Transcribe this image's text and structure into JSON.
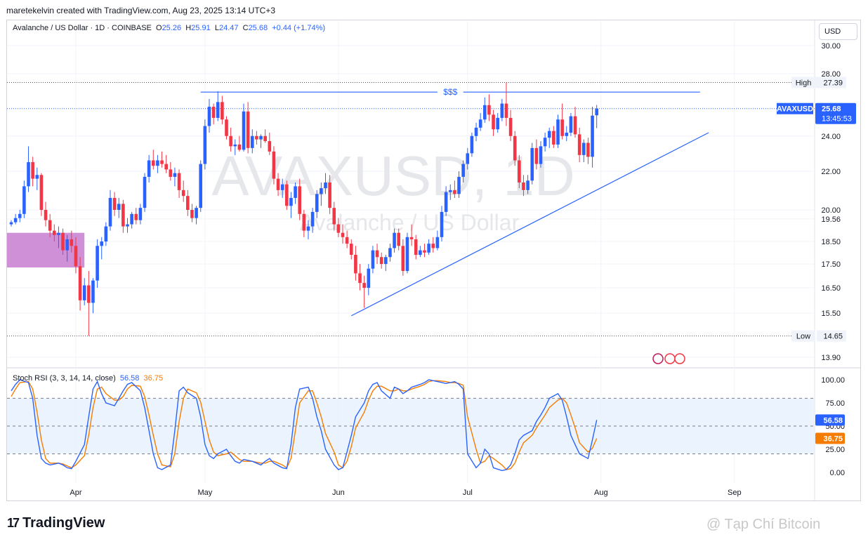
{
  "header": {
    "created_by": "maretekelvin created with TradingView.com, Aug 23, 2025 13:14 UTC+3"
  },
  "legend": {
    "title": "Avalanche / US Dollar · 1D · COINBASE",
    "open_label": "O",
    "open": "25.26",
    "high_label": "H",
    "high": "25.91",
    "low_label": "L",
    "low": "24.47",
    "close_label": "C",
    "close": "25.68",
    "change": "+0.44 (+1.74%)"
  },
  "currency_button": "USD",
  "watermark": {
    "symbol": "AVAXUSD, 1D",
    "name": "Avalanche / US Dollar"
  },
  "annotations": {
    "resistance_label": "$$$",
    "high_label": "High",
    "high_value": "27.39",
    "low_label": "Low",
    "low_value": "14.65",
    "ticker_label": "AVAXUSD",
    "last_price": "25.68",
    "countdown": "13:45:53"
  },
  "price_axis_labels": [
    "30.00",
    "28.00",
    "24.00",
    "22.00",
    "20.00",
    "19.56",
    "18.50",
    "17.50",
    "16.50",
    "15.50",
    "13.90"
  ],
  "price_axis_values": [
    30,
    28,
    24,
    22,
    20,
    19.56,
    18.5,
    17.5,
    16.5,
    15.5,
    13.9
  ],
  "stoch_rsi": {
    "title": "Stoch RSI (3, 3, 14, 14, close)",
    "k_value": "56.58",
    "d_value": "36.75",
    "axis_labels": [
      "100.00",
      "75.00",
      "50.00",
      "25.00",
      "0.00"
    ],
    "axis_values": [
      100,
      75,
      50,
      25,
      0
    ]
  },
  "time_axis": [
    "Apr",
    "May",
    "Jun",
    "Jul",
    "Aug",
    "Sep"
  ],
  "footer": {
    "brand": "TradingView",
    "credit": "@ Tạp Chí Bitcoin"
  },
  "colors": {
    "up": "#2962ff",
    "down": "#f23645",
    "k_line": "#2962ff",
    "d_line": "#f57c00",
    "zone": "#c77dd0",
    "band": "#e3effd"
  },
  "chart_data": {
    "type": "candlestick",
    "symbol": "AVAXUSD",
    "interval": "1D",
    "yscale": "log",
    "candles_ohlc": [
      [
        19.3,
        19.5,
        19.2,
        19.4
      ],
      [
        19.4,
        19.8,
        19.3,
        19.6
      ],
      [
        19.6,
        20.0,
        19.4,
        19.8
      ],
      [
        19.8,
        21.5,
        19.6,
        21.2
      ],
      [
        21.2,
        23.4,
        20.9,
        22.5
      ],
      [
        22.5,
        22.8,
        21.2,
        21.6
      ],
      [
        21.6,
        22.2,
        21.0,
        21.8
      ],
      [
        21.8,
        21.9,
        19.7,
        20.0
      ],
      [
        20.0,
        20.4,
        19.2,
        19.5
      ],
      [
        19.5,
        19.8,
        18.7,
        19.0
      ],
      [
        19.0,
        19.3,
        18.5,
        18.8
      ],
      [
        18.8,
        19.2,
        18.2,
        18.9
      ],
      [
        18.9,
        19.1,
        17.9,
        18.1
      ],
      [
        18.1,
        18.8,
        17.6,
        18.6
      ],
      [
        18.6,
        19.0,
        18.0,
        18.3
      ],
      [
        18.3,
        18.7,
        17.1,
        17.4
      ],
      [
        17.4,
        17.8,
        15.6,
        16.0
      ],
      [
        16.0,
        16.9,
        15.8,
        16.6
      ],
      [
        16.6,
        17.2,
        14.65,
        15.9
      ],
      [
        15.9,
        16.9,
        15.5,
        16.8
      ],
      [
        16.8,
        18.6,
        16.5,
        18.3
      ],
      [
        18.3,
        18.7,
        17.7,
        18.5
      ],
      [
        18.5,
        19.4,
        18.3,
        19.2
      ],
      [
        19.2,
        21.0,
        19.0,
        20.6
      ],
      [
        20.6,
        20.9,
        19.7,
        20.0
      ],
      [
        20.0,
        20.6,
        19.6,
        20.3
      ],
      [
        20.3,
        20.5,
        18.9,
        19.2
      ],
      [
        19.2,
        19.6,
        18.9,
        19.3
      ],
      [
        19.3,
        19.9,
        19.1,
        19.8
      ],
      [
        19.8,
        20.1,
        19.3,
        19.5
      ],
      [
        19.5,
        20.3,
        19.3,
        20.1
      ],
      [
        20.1,
        21.9,
        19.9,
        21.7
      ],
      [
        21.7,
        22.9,
        21.4,
        22.6
      ],
      [
        22.6,
        23.2,
        22.1,
        22.3
      ],
      [
        22.3,
        22.9,
        21.9,
        22.6
      ],
      [
        22.6,
        23.1,
        22.2,
        22.4
      ],
      [
        22.4,
        22.9,
        21.9,
        22.1
      ],
      [
        22.1,
        22.5,
        21.5,
        21.7
      ],
      [
        21.7,
        22.2,
        21.2,
        21.9
      ],
      [
        21.9,
        22.1,
        20.6,
        21.0
      ],
      [
        21.0,
        21.5,
        20.4,
        20.7
      ],
      [
        20.7,
        21.0,
        19.7,
        20.0
      ],
      [
        20.0,
        20.3,
        19.4,
        19.6
      ],
      [
        19.6,
        20.2,
        19.3,
        20.1
      ],
      [
        20.1,
        22.6,
        19.9,
        22.4
      ],
      [
        22.4,
        25.0,
        22.1,
        24.6
      ],
      [
        24.6,
        26.3,
        24.2,
        25.8
      ],
      [
        25.8,
        26.0,
        24.7,
        25.1
      ],
      [
        25.1,
        26.8,
        24.9,
        26.1
      ],
      [
        26.1,
        26.5,
        24.7,
        25.0
      ],
      [
        25.0,
        25.2,
        23.8,
        24.0
      ],
      [
        24.0,
        24.5,
        23.1,
        23.4
      ],
      [
        23.4,
        23.8,
        22.9,
        23.5
      ],
      [
        23.5,
        24.0,
        23.1,
        23.2
      ],
      [
        23.2,
        26.0,
        23.1,
        25.5
      ],
      [
        25.5,
        26.1,
        23.0,
        23.3
      ],
      [
        23.3,
        24.4,
        23.0,
        24.0
      ],
      [
        24.0,
        24.3,
        23.5,
        23.8
      ],
      [
        23.8,
        24.1,
        23.3,
        24.0
      ],
      [
        24.0,
        24.4,
        23.6,
        23.7
      ],
      [
        23.7,
        24.2,
        22.9,
        23.1
      ],
      [
        23.1,
        23.4,
        21.3,
        21.6
      ],
      [
        21.6,
        21.9,
        20.7,
        21.0
      ],
      [
        21.0,
        21.6,
        20.6,
        21.3
      ],
      [
        21.3,
        21.5,
        20.0,
        20.2
      ],
      [
        20.2,
        20.9,
        19.6,
        20.6
      ],
      [
        20.6,
        21.4,
        20.3,
        21.2
      ],
      [
        21.2,
        21.6,
        19.5,
        19.8
      ],
      [
        19.8,
        20.0,
        18.7,
        19.0
      ],
      [
        19.0,
        19.5,
        18.6,
        19.2
      ],
      [
        19.2,
        20.1,
        18.9,
        19.9
      ],
      [
        19.9,
        21.0,
        19.6,
        20.8
      ],
      [
        20.8,
        21.4,
        20.2,
        21.1
      ],
      [
        21.1,
        21.9,
        20.8,
        21.4
      ],
      [
        21.4,
        21.8,
        19.8,
        20.1
      ],
      [
        20.1,
        20.4,
        19.0,
        19.3
      ],
      [
        19.3,
        19.6,
        18.7,
        18.9
      ],
      [
        18.9,
        19.3,
        18.4,
        18.7
      ],
      [
        18.7,
        19.0,
        18.2,
        18.4
      ],
      [
        18.4,
        18.6,
        17.7,
        17.9
      ],
      [
        17.9,
        18.3,
        16.8,
        17.1
      ],
      [
        17.1,
        17.5,
        16.4,
        16.7
      ],
      [
        16.7,
        17.0,
        15.7,
        16.5
      ],
      [
        16.5,
        17.5,
        16.2,
        17.3
      ],
      [
        17.3,
        18.3,
        17.1,
        18.1
      ],
      [
        18.1,
        18.4,
        17.5,
        17.8
      ],
      [
        17.8,
        18.0,
        17.3,
        17.5
      ],
      [
        17.5,
        17.9,
        17.2,
        17.8
      ],
      [
        17.8,
        18.4,
        17.6,
        18.2
      ],
      [
        18.2,
        19.1,
        18.0,
        18.9
      ],
      [
        18.9,
        19.1,
        18.1,
        18.3
      ],
      [
        18.3,
        18.6,
        17.0,
        17.2
      ],
      [
        17.2,
        18.9,
        17.1,
        18.7
      ],
      [
        18.7,
        19.3,
        18.3,
        18.6
      ],
      [
        18.6,
        18.8,
        17.7,
        17.9
      ],
      [
        17.9,
        18.3,
        17.8,
        18.1
      ],
      [
        18.1,
        18.4,
        17.8,
        18.0
      ],
      [
        18.0,
        18.6,
        17.9,
        18.4
      ],
      [
        18.4,
        18.7,
        18.0,
        18.2
      ],
      [
        18.2,
        19.0,
        18.1,
        18.7
      ],
      [
        18.7,
        20.2,
        18.5,
        19.9
      ],
      [
        19.9,
        21.2,
        19.7,
        20.9
      ],
      [
        20.9,
        21.3,
        20.5,
        21.0
      ],
      [
        21.0,
        21.5,
        20.6,
        20.8
      ],
      [
        20.8,
        22.0,
        20.6,
        21.7
      ],
      [
        21.7,
        22.6,
        21.4,
        22.4
      ],
      [
        22.4,
        23.3,
        22.1,
        23.0
      ],
      [
        23.0,
        24.2,
        22.8,
        24.0
      ],
      [
        24.0,
        24.8,
        23.7,
        24.5
      ],
      [
        24.5,
        25.4,
        24.3,
        25.0
      ],
      [
        25.0,
        26.4,
        24.8,
        25.9
      ],
      [
        25.9,
        26.6,
        24.9,
        25.3
      ],
      [
        25.3,
        25.6,
        24.0,
        24.4
      ],
      [
        24.4,
        25.4,
        24.2,
        25.1
      ],
      [
        25.1,
        26.3,
        24.9,
        26.0
      ],
      [
        26.0,
        27.39,
        24.6,
        25.1
      ],
      [
        25.1,
        25.6,
        23.7,
        24.0
      ],
      [
        24.0,
        24.3,
        22.3,
        22.6
      ],
      [
        22.6,
        22.9,
        21.1,
        21.4
      ],
      [
        21.4,
        21.8,
        20.7,
        21.0
      ],
      [
        21.0,
        21.8,
        20.8,
        21.5
      ],
      [
        21.5,
        23.6,
        21.3,
        23.3
      ],
      [
        23.3,
        23.8,
        22.1,
        22.4
      ],
      [
        22.4,
        23.7,
        22.2,
        23.4
      ],
      [
        23.4,
        24.2,
        23.1,
        23.9
      ],
      [
        23.9,
        24.5,
        23.3,
        24.3
      ],
      [
        24.3,
        24.6,
        23.3,
        23.5
      ],
      [
        23.5,
        25.3,
        23.3,
        25.0
      ],
      [
        25.0,
        26.0,
        23.8,
        24.0
      ],
      [
        24.0,
        24.6,
        23.7,
        24.2
      ],
      [
        24.2,
        25.4,
        24.0,
        25.2
      ],
      [
        25.2,
        25.8,
        23.9,
        24.1
      ],
      [
        24.1,
        24.5,
        22.5,
        22.9
      ],
      [
        22.9,
        23.8,
        22.5,
        23.6
      ],
      [
        23.6,
        23.9,
        22.4,
        22.8
      ],
      [
        22.8,
        25.8,
        22.2,
        25.24
      ],
      [
        25.26,
        25.91,
        24.47,
        25.68
      ]
    ],
    "annotations": {
      "resistance": 26.75,
      "all_visible_high": 27.39,
      "all_visible_low": 14.65,
      "trendline_from": [
        "2025-06-07",
        15.4
      ],
      "trendline_to": [
        "2025-08-31",
        24.2
      ],
      "demand_zone": {
        "from": "2025-03-14",
        "to": "2025-04-06",
        "top": 18.9,
        "bottom": 17.35
      }
    },
    "stoch_rsi_k": [
      88,
      95,
      100,
      97,
      80,
      40,
      15,
      10,
      8,
      10,
      8,
      5,
      4,
      12,
      30,
      60,
      90,
      98,
      85,
      75,
      72,
      80,
      88,
      95,
      97,
      88,
      70,
      45,
      20,
      5,
      3,
      8,
      45,
      88,
      92,
      86,
      80,
      60,
      30,
      18,
      15,
      20,
      25,
      18,
      12,
      10,
      14,
      12,
      10,
      8,
      12,
      15,
      10,
      5,
      4,
      30,
      70,
      90,
      92,
      80,
      60,
      45,
      25,
      8,
      3,
      5,
      22,
      40,
      60,
      75,
      88,
      95,
      97,
      88,
      80,
      92,
      90,
      85,
      88,
      92,
      95,
      97,
      100,
      99,
      98,
      96,
      97,
      98,
      95,
      90,
      20,
      5,
      10,
      25,
      20,
      5,
      2,
      3,
      8,
      20,
      35,
      40,
      45,
      55,
      62,
      70,
      80,
      85,
      78,
      60,
      40,
      30,
      20,
      15,
      35,
      56.58
    ],
    "stoch_rsi_d": [
      82,
      90,
      97,
      98,
      90,
      65,
      35,
      15,
      10,
      10,
      9,
      7,
      5,
      8,
      18,
      40,
      70,
      90,
      92,
      85,
      78,
      78,
      82,
      90,
      94,
      93,
      82,
      62,
      40,
      20,
      8,
      6,
      20,
      55,
      80,
      90,
      86,
      76,
      55,
      35,
      22,
      18,
      20,
      22,
      18,
      14,
      12,
      12,
      11,
      10,
      10,
      12,
      12,
      8,
      5,
      15,
      45,
      75,
      88,
      88,
      75,
      60,
      42,
      22,
      8,
      5,
      12,
      28,
      48,
      65,
      78,
      88,
      93,
      93,
      88,
      88,
      90,
      88,
      88,
      90,
      93,
      95,
      98,
      99,
      99,
      98,
      97,
      97,
      96,
      94,
      60,
      25,
      10,
      12,
      18,
      15,
      8,
      3,
      4,
      10,
      22,
      32,
      40,
      48,
      55,
      62,
      70,
      78,
      80,
      75,
      62,
      48,
      32,
      22,
      26,
      36.75
    ]
  }
}
